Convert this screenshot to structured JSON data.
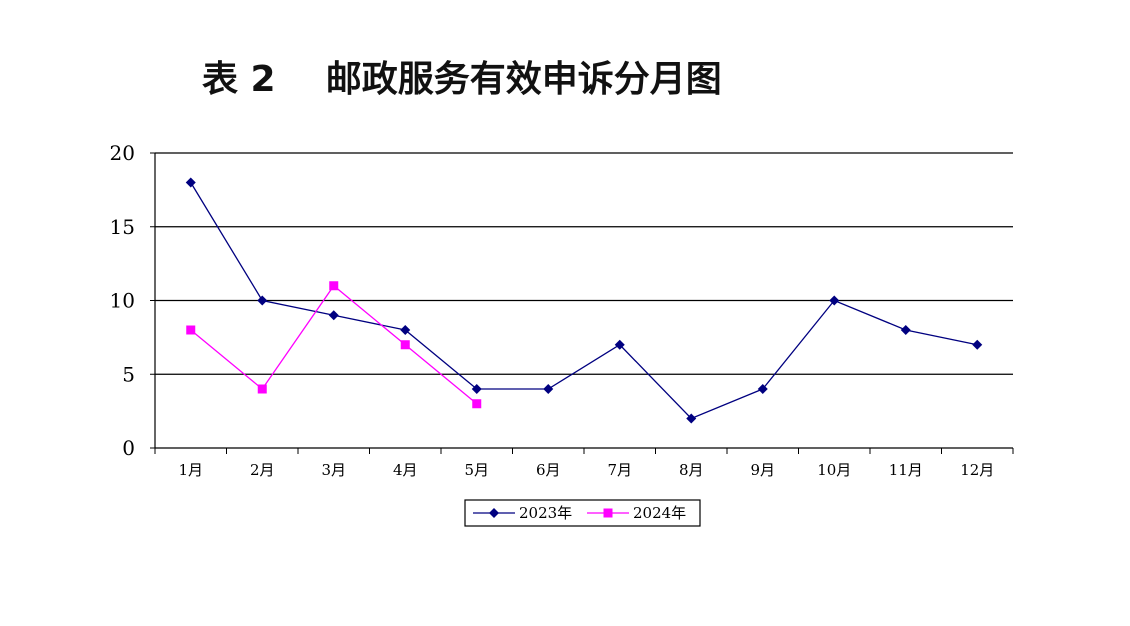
{
  "title": "表 2    邮政服务有效申诉分月图",
  "chart_data": {
    "type": "line",
    "title": "表 2    邮政服务有效申诉分月图",
    "xlabel": "",
    "ylabel": "",
    "categories": [
      "1月",
      "2月",
      "3月",
      "4月",
      "5月",
      "6月",
      "7月",
      "8月",
      "9月",
      "10月",
      "11月",
      "12月"
    ],
    "ylim": [
      0,
      20
    ],
    "yticks": [
      0,
      5,
      10,
      15,
      20
    ],
    "grid": true,
    "legend_position": "bottom",
    "series": [
      {
        "name": "2023年",
        "color": "#000080",
        "marker": "diamond",
        "values": [
          18,
          10,
          9,
          8,
          4,
          4,
          7,
          2,
          4,
          10,
          8,
          7
        ]
      },
      {
        "name": "2024年",
        "color": "#FF00FF",
        "marker": "square",
        "values": [
          8,
          4,
          11,
          7,
          3,
          null,
          null,
          null,
          null,
          null,
          null,
          null
        ]
      }
    ]
  }
}
